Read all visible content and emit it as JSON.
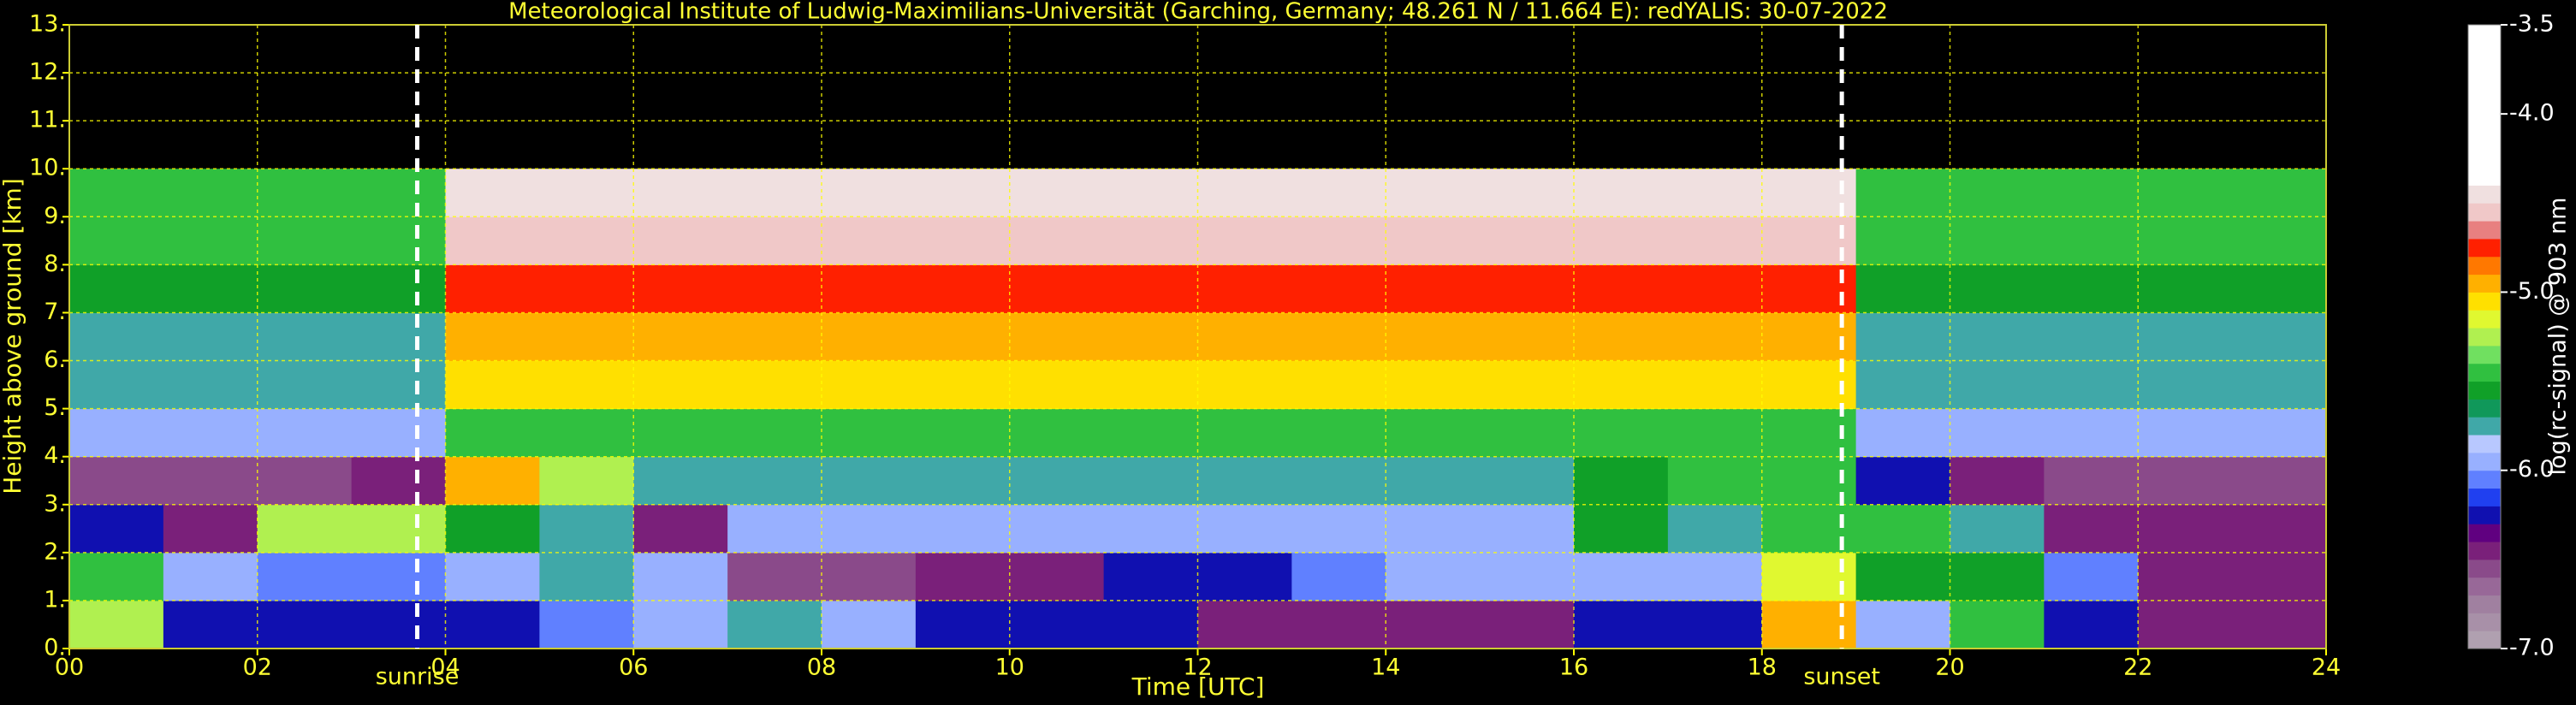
{
  "chart_data": {
    "type": "heatmap",
    "title": "Meteorological Institute of Ludwig-Maximilians-Universität (Garching, Germany; 48.261 N / 11.664 E):    redYALIS: 30-07-2022",
    "xlabel": "Time [UTC]",
    "ylabel": "Height above ground [km]",
    "xbins": [
      0,
      1,
      2,
      3,
      4,
      5,
      6,
      7,
      8,
      9,
      10,
      11,
      12,
      13,
      14,
      15,
      16,
      17,
      18,
      19,
      20,
      21,
      22,
      23,
      24
    ],
    "ybins": [
      0,
      1,
      2,
      3,
      4,
      5,
      6,
      7,
      8,
      9,
      10
    ],
    "values": [
      [
        -5.3,
        -6.2,
        -6.3,
        -6.3,
        -6.2,
        -6.1,
        -6.0,
        -5.8,
        -6.0,
        -6.2,
        -6.2,
        -6.3,
        -6.4,
        -6.4,
        -6.4,
        -6.4,
        -6.3,
        -6.3,
        -5.0,
        -6.0,
        -5.5,
        -6.2,
        -6.4,
        -6.4
      ],
      [
        -5.4,
        -6.0,
        -6.1,
        -6.1,
        -5.9,
        -5.8,
        -5.9,
        -6.6,
        -6.6,
        -6.5,
        -6.4,
        -6.3,
        -6.2,
        -6.1,
        -6.0,
        -5.9,
        -5.9,
        -5.9,
        -5.2,
        -5.6,
        -5.6,
        -6.1,
        -6.4,
        -6.5
      ],
      [
        -6.2,
        -6.4,
        -5.3,
        -5.3,
        -5.6,
        -5.7,
        -6.4,
        -6.0,
        -6.0,
        -6.0,
        -6.0,
        -6.0,
        -6.0,
        -6.0,
        -6.0,
        -6.0,
        -5.6,
        -5.8,
        -5.4,
        -5.5,
        -5.8,
        -6.5,
        -6.4,
        -6.5
      ],
      [
        -6.6,
        -6.6,
        -6.6,
        -6.4,
        -5.0,
        -5.3,
        -5.8,
        -5.8,
        -5.8,
        -5.8,
        -5.8,
        -5.8,
        -5.8,
        -5.8,
        -5.8,
        -5.8,
        -5.6,
        -5.4,
        -5.5,
        -6.3,
        -6.4,
        -6.6,
        -6.6,
        -6.6
      ],
      [
        -6.0,
        -6.0,
        -6.0,
        -6.0,
        -5.4,
        -5.4,
        -5.4,
        -5.4,
        -5.4,
        -5.4,
        -5.4,
        -5.4,
        -5.4,
        -5.4,
        -5.4,
        -5.4,
        -5.4,
        -5.4,
        -5.4,
        -6.0,
        -6.0,
        -6.0,
        -6.0,
        -6.0
      ],
      [
        -5.8,
        -5.8,
        -5.8,
        -5.8,
        -5.1,
        -5.1,
        -5.1,
        -5.1,
        -5.1,
        -5.1,
        -5.1,
        -5.1,
        -5.1,
        -5.1,
        -5.1,
        -5.1,
        -5.1,
        -5.1,
        -5.1,
        -5.8,
        -5.8,
        -5.8,
        -5.8,
        -5.8
      ],
      [
        -5.7,
        -5.7,
        -5.7,
        -5.7,
        -4.9,
        -4.9,
        -4.9,
        -4.9,
        -4.9,
        -4.9,
        -4.9,
        -4.9,
        -4.9,
        -4.9,
        -4.9,
        -4.9,
        -4.9,
        -4.9,
        -4.9,
        -5.7,
        -5.7,
        -5.7,
        -5.7,
        -5.7
      ],
      [
        -5.6,
        -5.6,
        -5.6,
        -5.6,
        -4.8,
        -4.8,
        -4.8,
        -4.8,
        -4.8,
        -4.8,
        -4.8,
        -4.8,
        -4.8,
        -4.8,
        -4.8,
        -4.8,
        -4.8,
        -4.8,
        -4.8,
        -5.6,
        -5.6,
        -5.6,
        -5.6,
        -5.6
      ],
      [
        -5.5,
        -5.5,
        -5.5,
        -5.5,
        -4.6,
        -4.6,
        -4.6,
        -4.6,
        -4.6,
        -4.6,
        -4.6,
        -4.6,
        -4.6,
        -4.6,
        -4.6,
        -4.6,
        -4.6,
        -4.6,
        -4.6,
        -5.5,
        -5.5,
        -5.5,
        -5.5,
        -5.5
      ],
      [
        -5.4,
        -5.4,
        -5.4,
        -5.4,
        -4.5,
        -4.5,
        -4.5,
        -4.5,
        -4.5,
        -4.5,
        -4.5,
        -4.5,
        -4.5,
        -4.5,
        -4.5,
        -4.5,
        -4.5,
        -4.5,
        -4.5,
        -5.4,
        -5.4,
        -5.4,
        -5.4,
        -5.4
      ]
    ],
    "xlim": [
      0,
      24
    ],
    "ylim": [
      0,
      13
    ],
    "xticks": [
      {
        "value": 0,
        "label": "00"
      },
      {
        "value": 2,
        "label": "02"
      },
      {
        "value": 4,
        "label": "04"
      },
      {
        "value": 6,
        "label": "06"
      },
      {
        "value": 8,
        "label": "08"
      },
      {
        "value": 10,
        "label": "10"
      },
      {
        "value": 12,
        "label": "12"
      },
      {
        "value": 14,
        "label": "14"
      },
      {
        "value": 16,
        "label": "16"
      },
      {
        "value": 18,
        "label": "18"
      },
      {
        "value": 20,
        "label": "20"
      },
      {
        "value": 22,
        "label": "22"
      },
      {
        "value": 24,
        "label": "24"
      }
    ],
    "yticks": [
      {
        "value": 0,
        "label": "0."
      },
      {
        "value": 1,
        "label": "1."
      },
      {
        "value": 2,
        "label": "2."
      },
      {
        "value": 3,
        "label": "3."
      },
      {
        "value": 4,
        "label": "4."
      },
      {
        "value": 5,
        "label": "5."
      },
      {
        "value": 6,
        "label": "6."
      },
      {
        "value": 7,
        "label": "7."
      },
      {
        "value": 8,
        "label": "8."
      },
      {
        "value": 9,
        "label": "9."
      },
      {
        "value": 10,
        "label": "10."
      },
      {
        "value": 11,
        "label": "11."
      },
      {
        "value": 12,
        "label": "12."
      },
      {
        "value": 13,
        "label": "13."
      }
    ],
    "grid": true,
    "grid_color": "#ffff00",
    "annotations": [
      {
        "text": "sunrise",
        "x": 3.7
      },
      {
        "text": "sunset",
        "x": 18.85
      }
    ],
    "colorbar": {
      "label": "log(rc-signal) @ 903 nm",
      "lim": [
        -7,
        -3.5
      ],
      "ticks": [
        -3.5,
        {
          "value": -4,
          "label": "-4.0"
        },
        {
          "value": -5,
          "label": "-5.0"
        },
        {
          "value": -6,
          "label": "-6.0"
        },
        {
          "value": -7,
          "label": "-7.0"
        }
      ],
      "colors": [
        "#b0a0b0",
        "#a890a8",
        "#a080a0",
        "#986898",
        "#8a4a8a",
        "#7a207a",
        "#600080",
        "#1010b0",
        "#2040f0",
        "#6080ff",
        "#98b0ff",
        "#b8c8ff",
        "#40a8a8",
        "#10985a",
        "#10a028",
        "#30c040",
        "#70e060",
        "#b0f050",
        "#e0f830",
        "#ffe000",
        "#ffb000",
        "#ff7800",
        "#ff2000",
        "#e88080",
        "#f0c8c8",
        "#f0e0e0",
        "#ffffff",
        "#ffffff",
        "#ffffff",
        "#ffffff",
        "#ffffff",
        "#ffffff",
        "#ffffff",
        "#ffffff",
        "#ffffff"
      ]
    }
  }
}
